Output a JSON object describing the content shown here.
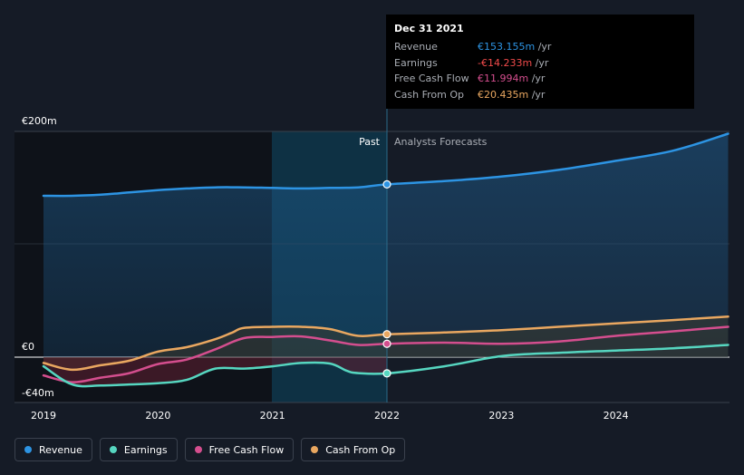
{
  "tooltip": {
    "date": "Dec 31 2021",
    "rows": [
      {
        "label": "Revenue",
        "value": "€153.155m",
        "unit": " /yr",
        "color": "#2d94e3"
      },
      {
        "label": "Earnings",
        "value": "-€14.233m",
        "unit": " /yr",
        "color": "#f24b4b"
      },
      {
        "label": "Free Cash Flow",
        "value": "€11.994m",
        "unit": " /yr",
        "color": "#d44e8e"
      },
      {
        "label": "Cash From Op",
        "value": "€20.435m",
        "unit": " /yr",
        "color": "#e9a760"
      }
    ]
  },
  "sections": {
    "past": "Past",
    "forecast": "Analysts Forecasts"
  },
  "legend": [
    {
      "label": "Revenue",
      "color": "#2d94e3"
    },
    {
      "label": "Earnings",
      "color": "#56d6c0"
    },
    {
      "label": "Free Cash Flow",
      "color": "#d44e8e"
    },
    {
      "label": "Cash From Op",
      "color": "#e9a760"
    }
  ],
  "chart_data": {
    "type": "line",
    "x_ticks": [
      "2019",
      "2020",
      "2021",
      "2022",
      "2023",
      "2024"
    ],
    "y_ticks": [
      {
        "value": 200,
        "label": "€200m"
      },
      {
        "value": 0,
        "label": "€0"
      },
      {
        "value": -40,
        "label": "-€40m"
      }
    ],
    "ylim": [
      -40,
      200
    ],
    "xlim": [
      2018.75,
      2024.98
    ],
    "highlight_date": 2022.0,
    "series": [
      {
        "name": "Revenue",
        "color": "#2d94e3",
        "points": [
          [
            2019.0,
            143
          ],
          [
            2019.25,
            143
          ],
          [
            2019.5,
            144
          ],
          [
            2019.75,
            146
          ],
          [
            2020.0,
            148
          ],
          [
            2020.25,
            149.5
          ],
          [
            2020.5,
            150.5
          ],
          [
            2020.75,
            150.5
          ],
          [
            2021.0,
            150
          ],
          [
            2021.25,
            149.5
          ],
          [
            2021.5,
            150
          ],
          [
            2021.75,
            150.5
          ],
          [
            2022.0,
            153.155
          ],
          [
            2022.5,
            156
          ],
          [
            2023.0,
            160
          ],
          [
            2023.5,
            166
          ],
          [
            2024.0,
            174
          ],
          [
            2024.5,
            183
          ],
          [
            2024.98,
            198
          ]
        ]
      },
      {
        "name": "Cash From Op",
        "color": "#e9a760",
        "points": [
          [
            2019.0,
            -5
          ],
          [
            2019.25,
            -11
          ],
          [
            2019.5,
            -7
          ],
          [
            2019.75,
            -3
          ],
          [
            2020.0,
            5
          ],
          [
            2020.25,
            9
          ],
          [
            2020.5,
            16
          ],
          [
            2020.65,
            22
          ],
          [
            2020.75,
            26
          ],
          [
            2021.0,
            27
          ],
          [
            2021.25,
            27
          ],
          [
            2021.5,
            25
          ],
          [
            2021.75,
            19
          ],
          [
            2022.0,
            20.435
          ],
          [
            2022.5,
            22
          ],
          [
            2023.0,
            24
          ],
          [
            2023.5,
            27
          ],
          [
            2024.0,
            30
          ],
          [
            2024.5,
            33
          ],
          [
            2024.98,
            36
          ]
        ]
      },
      {
        "name": "Free Cash Flow",
        "color": "#d44e8e",
        "points": [
          [
            2019.0,
            -16
          ],
          [
            2019.25,
            -22
          ],
          [
            2019.5,
            -18
          ],
          [
            2019.75,
            -14
          ],
          [
            2020.0,
            -6
          ],
          [
            2020.25,
            -2
          ],
          [
            2020.5,
            7
          ],
          [
            2020.75,
            17
          ],
          [
            2021.0,
            18
          ],
          [
            2021.25,
            18.5
          ],
          [
            2021.5,
            15
          ],
          [
            2021.75,
            11
          ],
          [
            2022.0,
            11.994
          ],
          [
            2022.5,
            13
          ],
          [
            2023.0,
            12
          ],
          [
            2023.5,
            14
          ],
          [
            2024.0,
            19
          ],
          [
            2024.5,
            23
          ],
          [
            2024.98,
            27
          ]
        ]
      },
      {
        "name": "Earnings",
        "color": "#56d6c0",
        "points": [
          [
            2019.0,
            -8
          ],
          [
            2019.25,
            -24
          ],
          [
            2019.5,
            -25
          ],
          [
            2019.75,
            -24
          ],
          [
            2020.0,
            -23
          ],
          [
            2020.25,
            -20
          ],
          [
            2020.5,
            -10
          ],
          [
            2020.75,
            -10
          ],
          [
            2021.0,
            -8
          ],
          [
            2021.25,
            -5
          ],
          [
            2021.5,
            -5.5
          ],
          [
            2021.65,
            -12
          ],
          [
            2021.75,
            -14
          ],
          [
            2022.0,
            -14.233
          ],
          [
            2022.5,
            -8
          ],
          [
            2023.0,
            1
          ],
          [
            2023.5,
            4
          ],
          [
            2024.0,
            6
          ],
          [
            2024.5,
            8
          ],
          [
            2024.98,
            11
          ]
        ]
      }
    ]
  }
}
